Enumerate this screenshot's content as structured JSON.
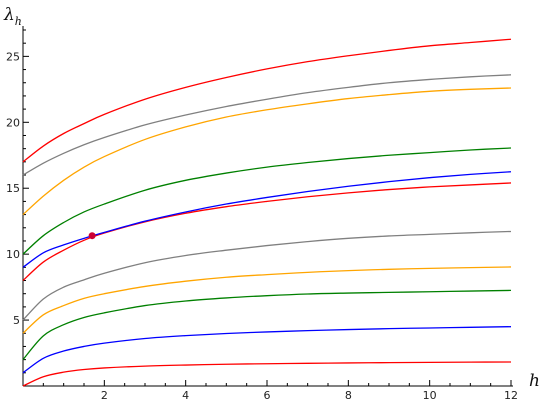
{
  "chart_data": {
    "type": "line",
    "xlabel": "h",
    "ylabel": "λh",
    "ylabel_main": "λ",
    "ylabel_sub": "h",
    "xlim": [
      0,
      12
    ],
    "ylim": [
      0,
      27
    ],
    "x_ticks": [
      2,
      4,
      6,
      8,
      10,
      12
    ],
    "y_ticks": [
      5,
      10,
      15,
      20,
      25
    ],
    "grid": false,
    "x": [
      0,
      0.5,
      1,
      1.5,
      2,
      3,
      4,
      5,
      6,
      7,
      8,
      9,
      10,
      11,
      12
    ],
    "series": [
      {
        "color": "#ff0000",
        "values": [
          0.0,
          0.7,
          1.05,
          1.25,
          1.37,
          1.51,
          1.59,
          1.65,
          1.69,
          1.72,
          1.75,
          1.77,
          1.79,
          1.81,
          1.82
        ]
      },
      {
        "color": "#0000ff",
        "values": [
          1.0,
          2.1,
          2.65,
          3.0,
          3.25,
          3.6,
          3.82,
          3.98,
          4.1,
          4.2,
          4.28,
          4.35,
          4.4,
          4.45,
          4.5
        ]
      },
      {
        "color": "#008000",
        "values": [
          2.0,
          3.8,
          4.65,
          5.2,
          5.55,
          6.1,
          6.45,
          6.68,
          6.85,
          6.98,
          7.05,
          7.1,
          7.15,
          7.2,
          7.25
        ]
      },
      {
        "color": "#ffa500",
        "values": [
          4.0,
          5.4,
          6.1,
          6.65,
          7.0,
          7.55,
          7.95,
          8.25,
          8.45,
          8.62,
          8.75,
          8.85,
          8.92,
          8.98,
          9.03
        ]
      },
      {
        "color": "#808080",
        "values": [
          5.0,
          6.6,
          7.5,
          8.05,
          8.55,
          9.35,
          9.9,
          10.3,
          10.65,
          10.95,
          11.2,
          11.38,
          11.5,
          11.62,
          11.72
        ]
      },
      {
        "color": "#ff0000",
        "values": [
          8.0,
          9.4,
          10.3,
          11.05,
          11.6,
          12.45,
          13.1,
          13.6,
          14.0,
          14.35,
          14.65,
          14.9,
          15.1,
          15.25,
          15.4
        ]
      },
      {
        "color": "#0000ff",
        "values": [
          9.0,
          10.1,
          10.7,
          11.2,
          11.65,
          12.5,
          13.2,
          13.8,
          14.3,
          14.75,
          15.15,
          15.5,
          15.8,
          16.05,
          16.25
        ]
      },
      {
        "color": "#008000",
        "values": [
          10.0,
          11.4,
          12.4,
          13.2,
          13.8,
          14.85,
          15.6,
          16.15,
          16.6,
          16.95,
          17.25,
          17.5,
          17.7,
          17.9,
          18.05
        ]
      },
      {
        "color": "#ffa500",
        "values": [
          13.0,
          14.4,
          15.6,
          16.6,
          17.4,
          18.7,
          19.65,
          20.4,
          20.95,
          21.4,
          21.8,
          22.1,
          22.35,
          22.5,
          22.6
        ]
      },
      {
        "color": "#808080",
        "values": [
          16.0,
          16.9,
          17.65,
          18.3,
          18.85,
          19.8,
          20.55,
          21.2,
          21.75,
          22.25,
          22.65,
          23.0,
          23.25,
          23.45,
          23.6
        ]
      },
      {
        "color": "#ff0000",
        "values": [
          17.0,
          18.2,
          19.15,
          19.9,
          20.6,
          21.75,
          22.65,
          23.4,
          24.05,
          24.6,
          25.05,
          25.45,
          25.8,
          26.05,
          26.3
        ]
      }
    ],
    "marked_point": {
      "x": 1.7,
      "y": 11.4,
      "color": "#cc0033"
    }
  }
}
